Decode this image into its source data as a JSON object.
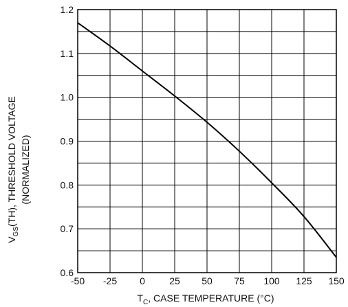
{
  "chart_data": {
    "type": "line",
    "title": "",
    "xlabel": {
      "prefix": "T",
      "subscript": "C",
      "rest": ", CASE TEMPERATURE (°C)"
    },
    "ylabel": {
      "prefix": "V",
      "subscript": "GS",
      "rest": "(TH), THRESHOLD VOLTAGE",
      "line2": "(NORMALIZED)"
    },
    "xlim": [
      -50,
      150
    ],
    "ylim": [
      0.6,
      1.2
    ],
    "x_ticks": [
      -50,
      -25,
      0,
      25,
      50,
      75,
      100,
      125,
      150
    ],
    "x_tick_labels": [
      "-50",
      "-25",
      "0",
      "25",
      "50",
      "75",
      "100",
      "125",
      "150"
    ],
    "y_ticks": [
      0.6,
      0.7,
      0.8,
      0.9,
      1.0,
      1.1,
      1.2
    ],
    "y_tick_labels": [
      "0.6",
      "0.7",
      "0.8",
      "0.9",
      "1.0",
      "1.1",
      "1.2"
    ],
    "x_gridlines": [
      -50,
      -25,
      0,
      25,
      50,
      75,
      100,
      125,
      150
    ],
    "y_gridlines": [
      0.6,
      0.65,
      0.7,
      0.75,
      0.8,
      0.85,
      0.9,
      0.95,
      1.0,
      1.05,
      1.1,
      1.15,
      1.2
    ],
    "grid": true,
    "legend": "none",
    "line_color": "#000000",
    "series": [
      {
        "x": [
          -50,
          -25,
          0,
          25,
          50,
          75,
          100,
          125,
          150
        ],
        "y": [
          1.17,
          1.117,
          1.06,
          1.003,
          0.943,
          0.877,
          0.805,
          0.728,
          0.635
        ]
      }
    ]
  }
}
